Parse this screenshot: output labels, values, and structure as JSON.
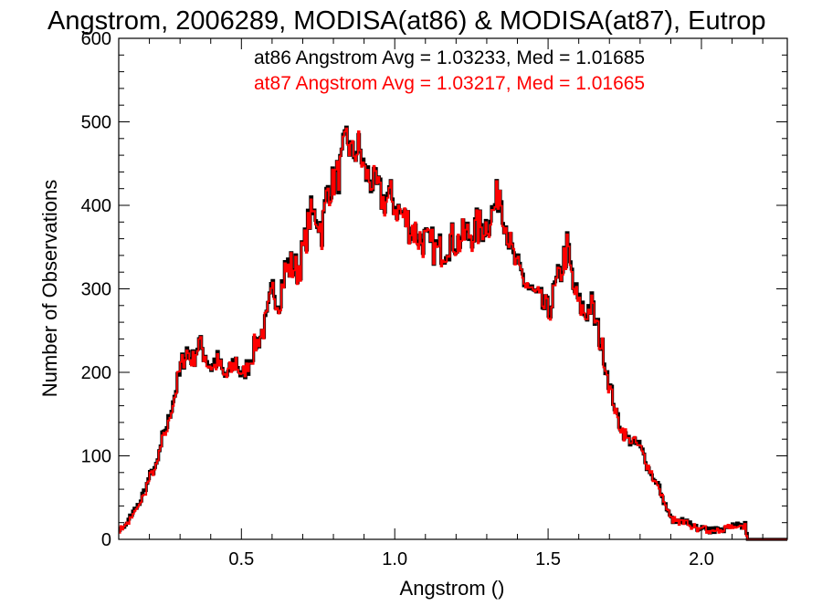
{
  "chart_data": {
    "type": "line",
    "step": true,
    "title": "Angstrom, 2006289, MODISA(at86) & MODISA(at87), Eutrop",
    "xlabel": "Angstrom ()",
    "ylabel": "Number of Observations",
    "xlim": [
      0.1,
      2.28
    ],
    "ylim": [
      0,
      600
    ],
    "xticks": [
      0.5,
      1.0,
      1.5,
      2.0
    ],
    "xtick_labels": [
      "0.5",
      "1.0",
      "1.5",
      "2.0"
    ],
    "yticks": [
      0,
      100,
      200,
      300,
      400,
      500,
      600
    ],
    "ytick_labels": [
      "0",
      "100",
      "200",
      "300",
      "400",
      "500",
      "600"
    ],
    "grid": false,
    "bin_width": 0.01,
    "bin_start": 0.1,
    "series": [
      {
        "name": "at86",
        "color": "#000000",
        "label": "at86 Angstrom Avg = 1.03233, Med = 1.01685"
      },
      {
        "name": "at87",
        "color": "#ff0000",
        "label": "at87 Angstrom Avg = 1.03217, Med = 1.01665"
      }
    ],
    "anchors_x": [
      0.1,
      0.12,
      0.14,
      0.16,
      0.18,
      0.2,
      0.22,
      0.24,
      0.26,
      0.28,
      0.3,
      0.32,
      0.34,
      0.36,
      0.38,
      0.4,
      0.42,
      0.44,
      0.46,
      0.48,
      0.5,
      0.52,
      0.54,
      0.56,
      0.58,
      0.6,
      0.62,
      0.64,
      0.66,
      0.68,
      0.7,
      0.72,
      0.74,
      0.76,
      0.78,
      0.8,
      0.82,
      0.84,
      0.86,
      0.88,
      0.9,
      0.92,
      0.94,
      0.96,
      0.98,
      1.0,
      1.02,
      1.04,
      1.06,
      1.08,
      1.1,
      1.12,
      1.14,
      1.16,
      1.18,
      1.2,
      1.22,
      1.24,
      1.26,
      1.28,
      1.3,
      1.32,
      1.34,
      1.36,
      1.38,
      1.4,
      1.42,
      1.44,
      1.46,
      1.48,
      1.5,
      1.52,
      1.54,
      1.56,
      1.58,
      1.6,
      1.62,
      1.64,
      1.66,
      1.68,
      1.7,
      1.72,
      1.74,
      1.76,
      1.78,
      1.8,
      1.82,
      1.84,
      1.86,
      1.88,
      1.9,
      1.92,
      1.94,
      1.96,
      1.98,
      2.0,
      2.02,
      2.04,
      2.06,
      2.08,
      2.1,
      2.12,
      2.14,
      2.15,
      2.16,
      2.28
    ],
    "anchors_y": [
      10,
      18,
      28,
      40,
      55,
      75,
      85,
      120,
      140,
      175,
      205,
      225,
      215,
      235,
      220,
      205,
      215,
      195,
      200,
      215,
      195,
      210,
      230,
      245,
      260,
      300,
      285,
      320,
      330,
      320,
      345,
      385,
      390,
      370,
      420,
      430,
      440,
      480,
      460,
      470,
      440,
      430,
      420,
      405,
      410,
      400,
      390,
      380,
      370,
      360,
      355,
      350,
      345,
      350,
      360,
      355,
      360,
      365,
      370,
      375,
      380,
      395,
      420,
      380,
      340,
      320,
      310,
      300,
      290,
      280,
      270,
      300,
      320,
      350,
      300,
      280,
      270,
      280,
      250,
      220,
      180,
      150,
      130,
      120,
      115,
      110,
      90,
      75,
      60,
      40,
      25,
      20,
      20,
      18,
      15,
      14,
      12,
      12,
      12,
      14,
      15,
      14,
      15,
      0,
      0,
      0
    ],
    "at86_values": [
      12,
      18,
      27,
      41,
      55,
      76,
      84,
      122,
      138,
      176,
      207,
      226,
      213,
      237,
      219,
      206,
      214,
      196,
      201,
      216,
      194,
      211,
      231,
      246,
      259,
      302,
      284,
      321,
      331,
      319,
      346,
      386,
      391,
      369,
      421,
      431,
      441,
      484,
      461,
      471,
      441,
      431,
      421,
      406,
      411,
      401,
      391,
      381,
      371,
      361,
      356,
      351,
      346,
      351,
      361,
      356,
      361,
      366,
      371,
      376,
      381,
      396,
      421,
      381,
      341,
      321,
      311,
      301,
      291,
      281,
      271,
      301,
      321,
      356,
      301,
      281,
      271,
      286,
      251,
      221,
      181,
      151,
      131,
      121,
      116,
      111,
      91,
      76,
      61,
      41,
      26,
      21,
      21,
      19,
      16,
      15,
      13,
      13,
      13,
      15,
      16,
      15,
      16,
      0,
      0,
      0
    ],
    "at87_values": [
      10,
      17,
      26,
      40,
      54,
      75,
      83,
      120,
      137,
      175,
      205,
      225,
      212,
      235,
      218,
      205,
      213,
      195,
      200,
      215,
      193,
      210,
      230,
      245,
      258,
      300,
      283,
      320,
      330,
      318,
      345,
      385,
      390,
      368,
      420,
      430,
      440,
      480,
      460,
      470,
      440,
      430,
      420,
      405,
      410,
      400,
      390,
      380,
      370,
      360,
      355,
      350,
      345,
      350,
      360,
      355,
      360,
      365,
      370,
      375,
      380,
      395,
      440,
      380,
      340,
      320,
      310,
      300,
      290,
      280,
      270,
      300,
      320,
      345,
      300,
      280,
      270,
      280,
      250,
      220,
      180,
      150,
      130,
      120,
      115,
      110,
      90,
      75,
      60,
      40,
      25,
      20,
      20,
      18,
      15,
      14,
      12,
      12,
      12,
      14,
      15,
      14,
      22,
      0,
      0,
      0
    ]
  }
}
